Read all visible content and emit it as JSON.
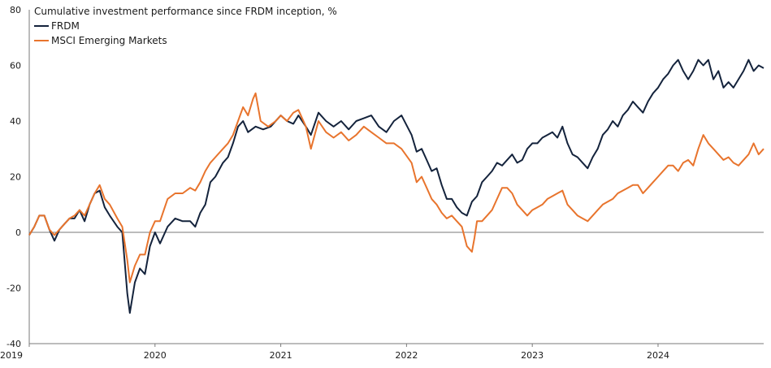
{
  "chart_data": {
    "type": "line",
    "title": "Cumulative investment performance since FRDM inception, %",
    "xlabel": "",
    "ylabel": "",
    "xlim": [
      2019.0,
      2024.84
    ],
    "ylim": [
      -40,
      80
    ],
    "yticks": [
      "80",
      "60",
      "40",
      "20",
      "0",
      "-20",
      "-40"
    ],
    "ytick_values": [
      80,
      60,
      40,
      20,
      0,
      -20,
      -40
    ],
    "xticks": [
      "2019",
      "2020",
      "2021",
      "2022",
      "2023",
      "2024"
    ],
    "xtick_values": [
      2019,
      2020,
      2021,
      2022,
      2023,
      2024
    ],
    "grid": false,
    "legend_position": "top-left",
    "series": [
      {
        "name": "FRDM",
        "color": "#14233c",
        "points": [
          [
            2019.0,
            -1
          ],
          [
            2019.04,
            2
          ],
          [
            2019.08,
            6
          ],
          [
            2019.12,
            6
          ],
          [
            2019.16,
            1
          ],
          [
            2019.2,
            -3
          ],
          [
            2019.24,
            1
          ],
          [
            2019.28,
            3
          ],
          [
            2019.32,
            5
          ],
          [
            2019.36,
            5
          ],
          [
            2019.4,
            8
          ],
          [
            2019.44,
            4
          ],
          [
            2019.48,
            10
          ],
          [
            2019.52,
            14
          ],
          [
            2019.56,
            15
          ],
          [
            2019.6,
            9
          ],
          [
            2019.64,
            6
          ],
          [
            2019.7,
            2
          ],
          [
            2019.74,
            0
          ],
          [
            2019.78,
            -22
          ],
          [
            2019.8,
            -29
          ],
          [
            2019.84,
            -18
          ],
          [
            2019.88,
            -13
          ],
          [
            2019.92,
            -15
          ],
          [
            2019.96,
            -5
          ],
          [
            2020.0,
            0
          ],
          [
            2020.04,
            -4
          ],
          [
            2020.1,
            2
          ],
          [
            2020.16,
            5
          ],
          [
            2020.22,
            4
          ],
          [
            2020.28,
            4
          ],
          [
            2020.32,
            2
          ],
          [
            2020.36,
            7
          ],
          [
            2020.4,
            10
          ],
          [
            2020.44,
            18
          ],
          [
            2020.48,
            20
          ],
          [
            2020.54,
            25
          ],
          [
            2020.58,
            27
          ],
          [
            2020.62,
            32
          ],
          [
            2020.66,
            38
          ],
          [
            2020.7,
            40
          ],
          [
            2020.74,
            36
          ],
          [
            2020.8,
            38
          ],
          [
            2020.86,
            37
          ],
          [
            2020.92,
            38
          ],
          [
            2021.0,
            42
          ],
          [
            2021.05,
            40
          ],
          [
            2021.1,
            39
          ],
          [
            2021.14,
            42
          ],
          [
            2021.2,
            38
          ],
          [
            2021.24,
            35
          ],
          [
            2021.3,
            43
          ],
          [
            2021.36,
            40
          ],
          [
            2021.42,
            38
          ],
          [
            2021.48,
            40
          ],
          [
            2021.54,
            37
          ],
          [
            2021.6,
            40
          ],
          [
            2021.66,
            41
          ],
          [
            2021.72,
            42
          ],
          [
            2021.78,
            38
          ],
          [
            2021.84,
            36
          ],
          [
            2021.9,
            40
          ],
          [
            2021.96,
            42
          ],
          [
            2022.04,
            35
          ],
          [
            2022.08,
            29
          ],
          [
            2022.12,
            30
          ],
          [
            2022.16,
            26
          ],
          [
            2022.2,
            22
          ],
          [
            2022.24,
            23
          ],
          [
            2022.28,
            17
          ],
          [
            2022.32,
            12
          ],
          [
            2022.36,
            12
          ],
          [
            2022.4,
            9
          ],
          [
            2022.44,
            7
          ],
          [
            2022.48,
            6
          ],
          [
            2022.52,
            11
          ],
          [
            2022.56,
            13
          ],
          [
            2022.6,
            18
          ],
          [
            2022.64,
            20
          ],
          [
            2022.68,
            22
          ],
          [
            2022.72,
            25
          ],
          [
            2022.76,
            24
          ],
          [
            2022.8,
            26
          ],
          [
            2022.84,
            28
          ],
          [
            2022.88,
            25
          ],
          [
            2022.92,
            26
          ],
          [
            2022.96,
            30
          ],
          [
            2023.0,
            32
          ],
          [
            2023.04,
            32
          ],
          [
            2023.08,
            34
          ],
          [
            2023.12,
            35
          ],
          [
            2023.16,
            36
          ],
          [
            2023.2,
            34
          ],
          [
            2023.24,
            38
          ],
          [
            2023.28,
            32
          ],
          [
            2023.32,
            28
          ],
          [
            2023.36,
            27
          ],
          [
            2023.4,
            25
          ],
          [
            2023.44,
            23
          ],
          [
            2023.48,
            27
          ],
          [
            2023.52,
            30
          ],
          [
            2023.56,
            35
          ],
          [
            2023.6,
            37
          ],
          [
            2023.64,
            40
          ],
          [
            2023.68,
            38
          ],
          [
            2023.72,
            42
          ],
          [
            2023.76,
            44
          ],
          [
            2023.8,
            47
          ],
          [
            2023.84,
            45
          ],
          [
            2023.88,
            43
          ],
          [
            2023.92,
            47
          ],
          [
            2023.96,
            50
          ],
          [
            2024.0,
            52
          ],
          [
            2024.04,
            55
          ],
          [
            2024.08,
            57
          ],
          [
            2024.12,
            60
          ],
          [
            2024.16,
            62
          ],
          [
            2024.2,
            58
          ],
          [
            2024.24,
            55
          ],
          [
            2024.28,
            58
          ],
          [
            2024.32,
            62
          ],
          [
            2024.36,
            60
          ],
          [
            2024.4,
            62
          ],
          [
            2024.44,
            55
          ],
          [
            2024.48,
            58
          ],
          [
            2024.52,
            52
          ],
          [
            2024.56,
            54
          ],
          [
            2024.6,
            52
          ],
          [
            2024.64,
            55
          ],
          [
            2024.68,
            58
          ],
          [
            2024.72,
            62
          ],
          [
            2024.76,
            58
          ],
          [
            2024.8,
            60
          ],
          [
            2024.84,
            59
          ]
        ]
      },
      {
        "name": "MSCI Emerging Markets",
        "color": "#e8742d",
        "points": [
          [
            2019.0,
            -1
          ],
          [
            2019.04,
            2
          ],
          [
            2019.08,
            6
          ],
          [
            2019.12,
            6
          ],
          [
            2019.16,
            1
          ],
          [
            2019.2,
            -1
          ],
          [
            2019.24,
            1
          ],
          [
            2019.28,
            3
          ],
          [
            2019.32,
            5
          ],
          [
            2019.36,
            6
          ],
          [
            2019.4,
            8
          ],
          [
            2019.44,
            6
          ],
          [
            2019.48,
            10
          ],
          [
            2019.52,
            14
          ],
          [
            2019.56,
            17
          ],
          [
            2019.6,
            12
          ],
          [
            2019.64,
            10
          ],
          [
            2019.7,
            5
          ],
          [
            2019.74,
            2
          ],
          [
            2019.78,
            -10
          ],
          [
            2019.8,
            -18
          ],
          [
            2019.84,
            -12
          ],
          [
            2019.88,
            -8
          ],
          [
            2019.92,
            -8
          ],
          [
            2019.96,
            0
          ],
          [
            2020.0,
            4
          ],
          [
            2020.04,
            4
          ],
          [
            2020.1,
            12
          ],
          [
            2020.16,
            14
          ],
          [
            2020.22,
            14
          ],
          [
            2020.28,
            16
          ],
          [
            2020.32,
            15
          ],
          [
            2020.36,
            18
          ],
          [
            2020.4,
            22
          ],
          [
            2020.44,
            25
          ],
          [
            2020.48,
            27
          ],
          [
            2020.54,
            30
          ],
          [
            2020.58,
            32
          ],
          [
            2020.62,
            35
          ],
          [
            2020.66,
            40
          ],
          [
            2020.7,
            45
          ],
          [
            2020.74,
            42
          ],
          [
            2020.78,
            48
          ],
          [
            2020.8,
            50
          ],
          [
            2020.84,
            40
          ],
          [
            2020.9,
            38
          ],
          [
            2020.96,
            40
          ],
          [
            2021.0,
            42
          ],
          [
            2021.05,
            40
          ],
          [
            2021.1,
            43
          ],
          [
            2021.14,
            44
          ],
          [
            2021.2,
            38
          ],
          [
            2021.24,
            30
          ],
          [
            2021.3,
            40
          ],
          [
            2021.36,
            36
          ],
          [
            2021.42,
            34
          ],
          [
            2021.48,
            36
          ],
          [
            2021.54,
            33
          ],
          [
            2021.6,
            35
          ],
          [
            2021.66,
            38
          ],
          [
            2021.72,
            36
          ],
          [
            2021.78,
            34
          ],
          [
            2021.84,
            32
          ],
          [
            2021.9,
            32
          ],
          [
            2021.96,
            30
          ],
          [
            2022.04,
            25
          ],
          [
            2022.08,
            18
          ],
          [
            2022.12,
            20
          ],
          [
            2022.16,
            16
          ],
          [
            2022.2,
            12
          ],
          [
            2022.24,
            10
          ],
          [
            2022.28,
            7
          ],
          [
            2022.32,
            5
          ],
          [
            2022.36,
            6
          ],
          [
            2022.4,
            4
          ],
          [
            2022.44,
            2
          ],
          [
            2022.48,
            -5
          ],
          [
            2022.52,
            -7
          ],
          [
            2022.54,
            -2
          ],
          [
            2022.56,
            4
          ],
          [
            2022.6,
            4
          ],
          [
            2022.64,
            6
          ],
          [
            2022.68,
            8
          ],
          [
            2022.72,
            12
          ],
          [
            2022.76,
            16
          ],
          [
            2022.8,
            16
          ],
          [
            2022.84,
            14
          ],
          [
            2022.88,
            10
          ],
          [
            2022.92,
            8
          ],
          [
            2022.96,
            6
          ],
          [
            2023.0,
            8
          ],
          [
            2023.04,
            9
          ],
          [
            2023.08,
            10
          ],
          [
            2023.12,
            12
          ],
          [
            2023.16,
            13
          ],
          [
            2023.2,
            14
          ],
          [
            2023.24,
            15
          ],
          [
            2023.28,
            10
          ],
          [
            2023.32,
            8
          ],
          [
            2023.36,
            6
          ],
          [
            2023.4,
            5
          ],
          [
            2023.44,
            4
          ],
          [
            2023.48,
            6
          ],
          [
            2023.52,
            8
          ],
          [
            2023.56,
            10
          ],
          [
            2023.6,
            11
          ],
          [
            2023.64,
            12
          ],
          [
            2023.68,
            14
          ],
          [
            2023.72,
            15
          ],
          [
            2023.76,
            16
          ],
          [
            2023.8,
            17
          ],
          [
            2023.84,
            17
          ],
          [
            2023.88,
            14
          ],
          [
            2023.92,
            16
          ],
          [
            2023.96,
            18
          ],
          [
            2024.0,
            20
          ],
          [
            2024.04,
            22
          ],
          [
            2024.08,
            24
          ],
          [
            2024.12,
            24
          ],
          [
            2024.16,
            22
          ],
          [
            2024.2,
            25
          ],
          [
            2024.24,
            26
          ],
          [
            2024.28,
            24
          ],
          [
            2024.32,
            30
          ],
          [
            2024.36,
            35
          ],
          [
            2024.4,
            32
          ],
          [
            2024.44,
            30
          ],
          [
            2024.48,
            28
          ],
          [
            2024.52,
            26
          ],
          [
            2024.56,
            27
          ],
          [
            2024.6,
            25
          ],
          [
            2024.64,
            24
          ],
          [
            2024.68,
            26
          ],
          [
            2024.72,
            28
          ],
          [
            2024.76,
            32
          ],
          [
            2024.8,
            28
          ],
          [
            2024.84,
            30
          ]
        ]
      }
    ]
  }
}
